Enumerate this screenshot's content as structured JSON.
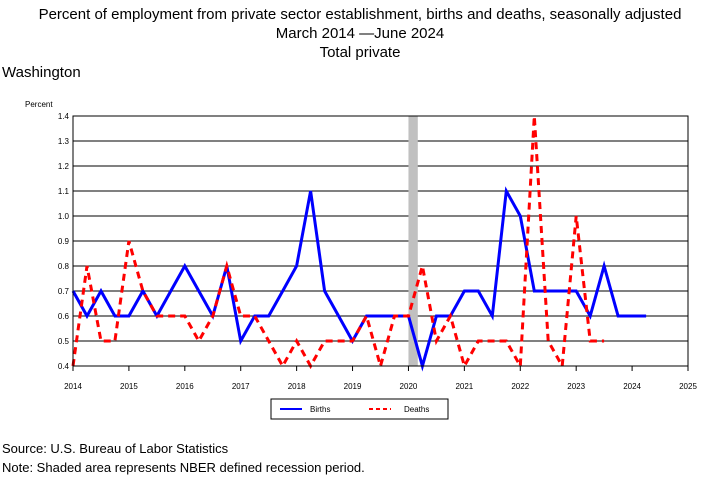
{
  "header": {
    "title_line1": "Percent of employment from private sector establishment, births and deaths, seasonally adjusted",
    "title_line2": "March 2014 —June 2024",
    "title_line3": "Total private",
    "region": "Washington"
  },
  "footer": {
    "source": "Source: U.S. Bureau of Labor Statistics",
    "note": "Note: Shaded area represents NBER defined recession period."
  },
  "chart_data": {
    "type": "line",
    "ylabel": "Percent",
    "ylim": [
      0.4,
      1.4
    ],
    "yticks": [
      "0.4",
      "0.5",
      "0.6",
      "0.7",
      "0.8",
      "0.9",
      "1.0",
      "1.1",
      "1.2",
      "1.3",
      "1.4"
    ],
    "xlim": [
      2014,
      2025
    ],
    "xticks": [
      "2014",
      "2015",
      "2016",
      "2017",
      "2018",
      "2019",
      "2020",
      "2021",
      "2022",
      "2023",
      "2024",
      "2025"
    ],
    "grid": "horizontal",
    "legend_position": "bottom-center",
    "recession": {
      "start": 2020.0,
      "end": 2020.167
    },
    "series": [
      {
        "name": "Births",
        "color": "#0000ff",
        "style": "solid",
        "x": [
          2014.0,
          2014.25,
          2014.5,
          2014.75,
          2015.0,
          2015.25,
          2015.5,
          2015.75,
          2016.0,
          2016.25,
          2016.5,
          2016.75,
          2017.0,
          2017.25,
          2017.5,
          2017.75,
          2018.0,
          2018.25,
          2018.5,
          2018.75,
          2019.0,
          2019.25,
          2019.5,
          2019.75,
          2020.0,
          2020.25,
          2020.5,
          2020.75,
          2021.0,
          2021.25,
          2021.5,
          2021.75,
          2022.0,
          2022.25,
          2022.5,
          2022.75,
          2023.0,
          2023.25,
          2023.5,
          2023.75,
          2024.0,
          2024.25
        ],
        "values": [
          0.7,
          0.6,
          0.7,
          0.6,
          0.6,
          0.7,
          0.6,
          0.7,
          0.8,
          0.7,
          0.6,
          0.8,
          0.5,
          0.6,
          0.6,
          0.7,
          0.8,
          1.1,
          0.7,
          0.6,
          0.5,
          0.6,
          0.6,
          0.6,
          0.6,
          0.4,
          0.6,
          0.6,
          0.7,
          0.7,
          0.6,
          1.1,
          1.0,
          0.7,
          0.7,
          0.7,
          0.7,
          0.6,
          0.8,
          0.6,
          0.6,
          0.6
        ]
      },
      {
        "name": "Deaths",
        "color": "#ff0000",
        "style": "dashed",
        "x": [
          2014.0,
          2014.25,
          2014.5,
          2014.75,
          2015.0,
          2015.25,
          2015.5,
          2015.75,
          2016.0,
          2016.25,
          2016.5,
          2016.75,
          2017.0,
          2017.25,
          2017.5,
          2017.75,
          2018.0,
          2018.25,
          2018.5,
          2018.75,
          2019.0,
          2019.25,
          2019.5,
          2019.75,
          2020.0,
          2020.25,
          2020.5,
          2020.75,
          2021.0,
          2021.25,
          2021.5,
          2021.75,
          2022.0,
          2022.25,
          2022.5,
          2022.75,
          2023.0,
          2023.25,
          2023.5
        ],
        "values": [
          0.4,
          0.8,
          0.5,
          0.5,
          0.9,
          0.7,
          0.6,
          0.6,
          0.6,
          0.5,
          0.6,
          0.8,
          0.6,
          0.6,
          0.5,
          0.4,
          0.5,
          0.4,
          0.5,
          0.5,
          0.5,
          0.6,
          0.4,
          0.6,
          0.6,
          0.8,
          0.5,
          0.6,
          0.4,
          0.5,
          0.5,
          0.5,
          0.4,
          1.4,
          0.5,
          0.4,
          1.0,
          0.5,
          0.5
        ]
      }
    ]
  }
}
